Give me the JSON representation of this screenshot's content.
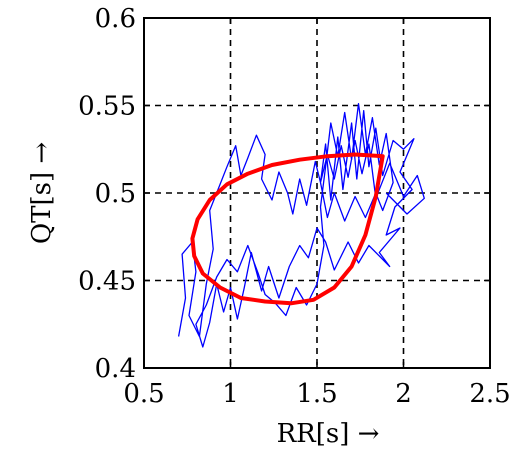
{
  "chart_data": {
    "type": "line",
    "title": "",
    "xlabel": "RR[s] →",
    "ylabel": "QT[s] →",
    "xlim": [
      0.5,
      2.5
    ],
    "ylim": [
      0.4,
      0.6
    ],
    "x_ticks": [
      0.5,
      1,
      1.5,
      2,
      2.5
    ],
    "y_ticks": [
      0.4,
      0.45,
      0.5,
      0.55,
      0.6
    ],
    "x_tick_labels": [
      "0.5",
      "1",
      "1.5",
      "2",
      "2.5"
    ],
    "y_tick_labels": [
      "0.4",
      "0.45",
      "0.5",
      "0.55",
      "0.6"
    ],
    "grid": true,
    "grid_style": "dashed",
    "series": [
      {
        "color": "#0000ff",
        "style": "trajectory",
        "points": [
          [
            0.7,
            0.418
          ],
          [
            0.74,
            0.44
          ],
          [
            0.72,
            0.465
          ],
          [
            0.78,
            0.472
          ],
          [
            0.8,
            0.455
          ],
          [
            0.76,
            0.43
          ],
          [
            0.82,
            0.418
          ],
          [
            0.86,
            0.448
          ],
          [
            0.9,
            0.468
          ],
          [
            0.88,
            0.49
          ],
          [
            0.94,
            0.505
          ],
          [
            0.98,
            0.515
          ],
          [
            1.03,
            0.527
          ],
          [
            1.06,
            0.51
          ],
          [
            1.1,
            0.52
          ],
          [
            1.15,
            0.533
          ],
          [
            1.2,
            0.522
          ],
          [
            1.18,
            0.508
          ],
          [
            1.24,
            0.496
          ],
          [
            1.28,
            0.512
          ],
          [
            1.33,
            0.5
          ],
          [
            1.36,
            0.488
          ],
          [
            1.4,
            0.508
          ],
          [
            1.44,
            0.493
          ],
          [
            1.49,
            0.518
          ],
          [
            1.52,
            0.506
          ],
          [
            1.55,
            0.528
          ],
          [
            1.58,
            0.496
          ],
          [
            1.62,
            0.532
          ],
          [
            1.65,
            0.502
          ],
          [
            1.7,
            0.54
          ],
          [
            1.73,
            0.508
          ],
          [
            1.77,
            0.547
          ],
          [
            1.8,
            0.515
          ],
          [
            1.84,
            0.537
          ],
          [
            1.88,
            0.51
          ],
          [
            1.94,
            0.53
          ],
          [
            2.0,
            0.525
          ],
          [
            2.06,
            0.531
          ],
          [
            1.98,
            0.512
          ],
          [
            2.05,
            0.502
          ],
          [
            1.95,
            0.492
          ],
          [
            1.9,
            0.476
          ],
          [
            1.98,
            0.48
          ],
          [
            1.86,
            0.466
          ],
          [
            1.92,
            0.458
          ],
          [
            1.8,
            0.47
          ],
          [
            1.74,
            0.46
          ],
          [
            1.68,
            0.472
          ],
          [
            1.6,
            0.456
          ],
          [
            1.55,
            0.472
          ],
          [
            1.5,
            0.48
          ],
          [
            1.45,
            0.463
          ],
          [
            1.4,
            0.47
          ],
          [
            1.34,
            0.458
          ],
          [
            1.28,
            0.44
          ],
          [
            1.22,
            0.458
          ],
          [
            1.18,
            0.444
          ],
          [
            1.12,
            0.466
          ],
          [
            1.08,
            0.446
          ],
          [
            1.04,
            0.428
          ],
          [
            1.0,
            0.446
          ],
          [
            0.96,
            0.432
          ],
          [
            0.92,
            0.448
          ],
          [
            0.88,
            0.426
          ],
          [
            0.84,
            0.412
          ],
          [
            0.8,
            0.425
          ],
          [
            0.86,
            0.436
          ],
          [
            0.92,
            0.452
          ],
          [
            0.98,
            0.462
          ],
          [
            1.04,
            0.455
          ],
          [
            1.1,
            0.47
          ],
          [
            1.16,
            0.454
          ],
          [
            1.2,
            0.442
          ],
          [
            1.26,
            0.437
          ],
          [
            1.32,
            0.43
          ],
          [
            1.38,
            0.446
          ],
          [
            1.44,
            0.436
          ],
          [
            1.5,
            0.448
          ],
          [
            1.54,
            0.47
          ],
          [
            1.52,
            0.492
          ],
          [
            1.55,
            0.515
          ],
          [
            1.58,
            0.54
          ],
          [
            1.62,
            0.521
          ],
          [
            1.66,
            0.546
          ],
          [
            1.7,
            0.519
          ],
          [
            1.74,
            0.551
          ],
          [
            1.78,
            0.522
          ],
          [
            1.82,
            0.543
          ],
          [
            1.86,
            0.516
          ],
          [
            1.9,
            0.534
          ],
          [
            1.94,
            0.506
          ],
          [
            1.88,
            0.49
          ],
          [
            1.84,
            0.5
          ],
          [
            1.78,
            0.486
          ],
          [
            1.72,
            0.498
          ],
          [
            1.66,
            0.484
          ],
          [
            1.6,
            0.5
          ],
          [
            1.56,
            0.486
          ],
          [
            1.52,
            0.506
          ],
          [
            1.56,
            0.522
          ],
          [
            1.6,
            0.508
          ],
          [
            1.64,
            0.527
          ],
          [
            1.68,
            0.509
          ],
          [
            1.72,
            0.53
          ],
          [
            1.76,
            0.511
          ],
          [
            1.8,
            0.528
          ],
          [
            1.84,
            0.497
          ],
          [
            1.92,
            0.517
          ],
          [
            2.0,
            0.498
          ],
          [
            2.08,
            0.51
          ],
          [
            2.12,
            0.497
          ],
          [
            2.02,
            0.488
          ],
          [
            1.96,
            0.494
          ],
          [
            1.9,
            0.5
          ]
        ]
      },
      {
        "color": "#ff0000",
        "style": "closed-loop",
        "points": [
          [
            1.88,
            0.521
          ],
          [
            1.84,
            0.498
          ],
          [
            1.78,
            0.476
          ],
          [
            1.7,
            0.458
          ],
          [
            1.6,
            0.446
          ],
          [
            1.48,
            0.439
          ],
          [
            1.35,
            0.437
          ],
          [
            1.2,
            0.438
          ],
          [
            1.06,
            0.44
          ],
          [
            0.94,
            0.446
          ],
          [
            0.84,
            0.454
          ],
          [
            0.79,
            0.464
          ],
          [
            0.78,
            0.474
          ],
          [
            0.81,
            0.485
          ],
          [
            0.88,
            0.496
          ],
          [
            0.98,
            0.505
          ],
          [
            1.1,
            0.511
          ],
          [
            1.24,
            0.516
          ],
          [
            1.4,
            0.519
          ],
          [
            1.56,
            0.521
          ],
          [
            1.72,
            0.522
          ],
          [
            1.88,
            0.521
          ]
        ]
      }
    ]
  }
}
